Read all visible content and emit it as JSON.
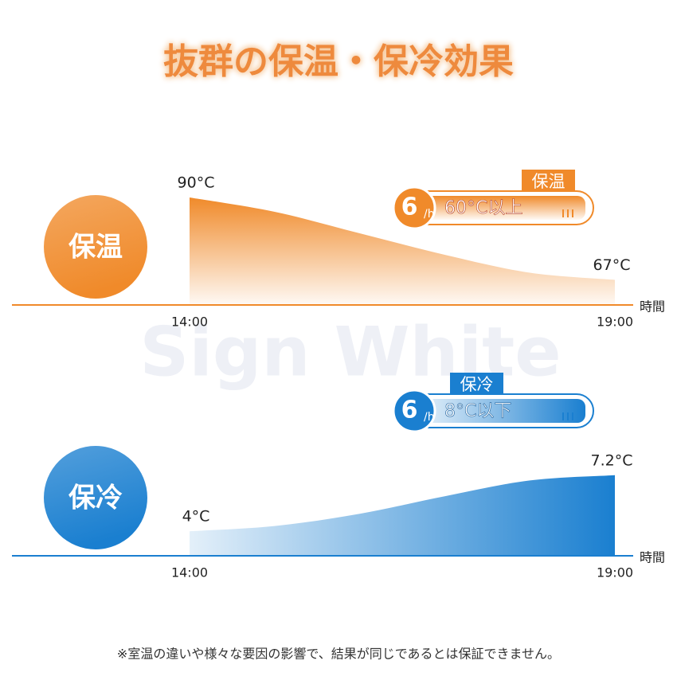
{
  "title": "抜群の保温・保冷効果",
  "watermark": "Sign White",
  "chart_data": [
    {
      "type": "area",
      "label": "保温",
      "color": "#f08a2a",
      "categories": [
        "14:00",
        null,
        null,
        null,
        null,
        "19:00"
      ],
      "values": [
        90,
        86,
        80,
        74,
        69,
        67
      ],
      "value_labels": [
        "90°C",
        null,
        null,
        null,
        null,
        "67°C"
      ],
      "ylim": [
        60,
        90
      ],
      "xlabel": "時間",
      "badge": {
        "hours": "6",
        "unit": "/h",
        "note": "60°C以上",
        "tag": "保温"
      }
    },
    {
      "type": "area",
      "label": "保冷",
      "color": "#1a7fd0",
      "categories": [
        "14:00",
        null,
        null,
        null,
        null,
        "19:00"
      ],
      "values": [
        4,
        4.3,
        5.0,
        6.0,
        6.9,
        7.2
      ],
      "value_labels": [
        "4°C",
        null,
        null,
        null,
        null,
        "7.2°C"
      ],
      "ylim": [
        2.6,
        7.6
      ],
      "xlabel": "時間",
      "badge": {
        "hours": "6",
        "unit": "/h",
        "note": "8°C以下",
        "tag": "保冷"
      }
    }
  ],
  "footnote": "※室温の違いや様々な要因の影響で、結果が同じであるとは保証できません。"
}
